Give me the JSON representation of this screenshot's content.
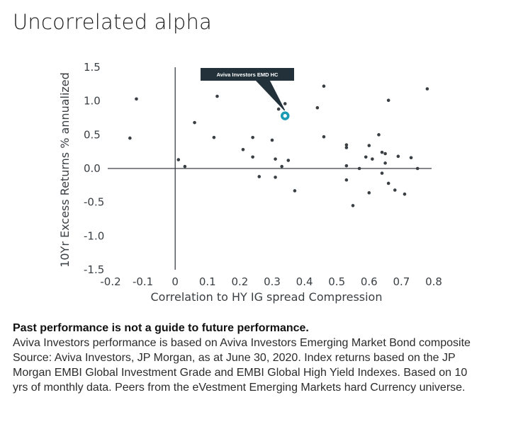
{
  "title": "Uncorrelated alpha",
  "chart_data": {
    "type": "scatter",
    "xlabel": "Correlation to HY IG spread Compression",
    "ylabel": "10Yr Excess Returns % annualized",
    "xlim": [
      -0.2,
      0.8
    ],
    "ylim": [
      -1.5,
      1.5
    ],
    "x_ticks": [
      "-0.2",
      "-0.1",
      "0",
      "0.1",
      "0.2",
      "0.3",
      "0.4",
      "0.5",
      "0.6",
      "0.7",
      "0.8"
    ],
    "y_ticks": [
      "1.5",
      "1.0",
      "0.5",
      "0.0",
      "-0.5",
      "-1.0",
      "-1.5"
    ],
    "highlight": {
      "label": "Aviva Investors EMD HC",
      "x": 0.34,
      "y": 0.78,
      "color": "#1a9bb5"
    },
    "points": [
      [
        -0.12,
        1.03
      ],
      [
        -0.14,
        0.45
      ],
      [
        0.01,
        0.13
      ],
      [
        0.03,
        0.03
      ],
      [
        0.06,
        0.68
      ],
      [
        0.13,
        1.07
      ],
      [
        0.12,
        0.46
      ],
      [
        0.21,
        0.28
      ],
      [
        0.24,
        0.46
      ],
      [
        0.24,
        0.17
      ],
      [
        0.26,
        -0.12
      ],
      [
        0.3,
        0.42
      ],
      [
        0.31,
        0.14
      ],
      [
        0.31,
        -0.13
      ],
      [
        0.32,
        0.88
      ],
      [
        0.33,
        0.03
      ],
      [
        0.34,
        0.96
      ],
      [
        0.35,
        0.12
      ],
      [
        0.37,
        -0.33
      ],
      [
        0.44,
        0.9
      ],
      [
        0.46,
        1.22
      ],
      [
        0.46,
        0.47
      ],
      [
        0.53,
        0.35
      ],
      [
        0.53,
        0.31
      ],
      [
        0.53,
        0.04
      ],
      [
        0.53,
        -0.17
      ],
      [
        0.55,
        -0.55
      ],
      [
        0.57,
        0.0
      ],
      [
        0.59,
        0.17
      ],
      [
        0.6,
        0.34
      ],
      [
        0.61,
        0.14
      ],
      [
        0.6,
        -0.36
      ],
      [
        0.63,
        0.5
      ],
      [
        0.64,
        0.24
      ],
      [
        0.65,
        0.22
      ],
      [
        0.65,
        0.08
      ],
      [
        0.64,
        -0.07
      ],
      [
        0.66,
        1.01
      ],
      [
        0.66,
        -0.22
      ],
      [
        0.68,
        -0.32
      ],
      [
        0.69,
        0.18
      ],
      [
        0.71,
        -0.38
      ],
      [
        0.73,
        0.16
      ],
      [
        0.75,
        0.0
      ],
      [
        0.78,
        1.18
      ]
    ]
  },
  "notes": {
    "heading": "Past performance is not a guide to future performance.",
    "line1": "Aviva Investors performance is based on Aviva Investors Emerging Market Bond composite",
    "line2": "Source: Aviva Investors, JP Morgan, as at June 30, 2020. Index returns based on the JP",
    "line3": "Morgan EMBI Global Investment Grade and EMBI Global High Yield Indexes. Based on 10",
    "line4": "yrs of monthly data. Peers from the eVestment Emerging Markets hard Currency universe."
  }
}
